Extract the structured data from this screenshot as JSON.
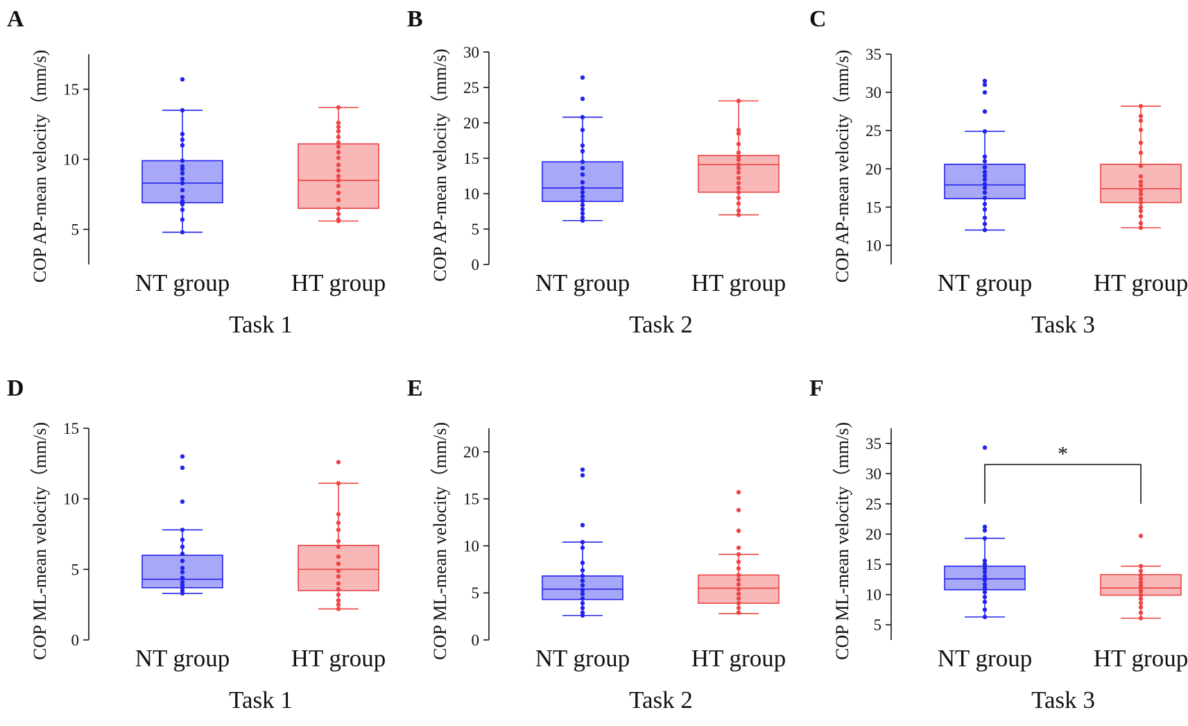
{
  "colors": {
    "nt_stroke": "#2222EE",
    "nt_fill": "#A8A8F8",
    "ht_stroke": "#EE4444",
    "ht_fill": "#F8B8B8",
    "axis": "#111111"
  },
  "chart_data": [
    {
      "type": "box",
      "panel": "A",
      "ylabel": "COP AP-mean velocity（mm/s)",
      "xlabel": "Task 1",
      "categories": [
        "NT group",
        "HT group"
      ],
      "ylim": [
        2.5,
        17.5
      ],
      "yticks": [
        5,
        10,
        15
      ],
      "series": [
        {
          "name": "NT group",
          "min": 4.8,
          "q1": 6.9,
          "median": 8.3,
          "q3": 9.9,
          "max": 13.5,
          "points": [
            15.7,
            13.5,
            11.8,
            11.4,
            11.0,
            9.9,
            9.5,
            9.3,
            9.0,
            8.6,
            8.3,
            7.8,
            7.3,
            7.0,
            6.8,
            6.4,
            5.7,
            4.8
          ]
        },
        {
          "name": "HT group",
          "min": 5.6,
          "q1": 6.5,
          "median": 8.5,
          "q3": 11.1,
          "max": 13.7,
          "points": [
            13.7,
            12.6,
            12.3,
            12.0,
            11.6,
            11.2,
            10.9,
            10.5,
            10.1,
            9.6,
            9.2,
            8.8,
            8.5,
            8.1,
            7.6,
            7.1,
            6.5,
            6.1,
            5.7,
            5.6
          ]
        }
      ]
    },
    {
      "type": "box",
      "panel": "B",
      "ylabel": "COP AP-mean velocity（mm/s)",
      "xlabel": "Task 2",
      "categories": [
        "NT group",
        "HT group"
      ],
      "ylim": [
        0,
        30
      ],
      "yticks": [
        0,
        5,
        10,
        15,
        20,
        25,
        30
      ],
      "series": [
        {
          "name": "NT group",
          "min": 6.2,
          "q1": 8.9,
          "median": 10.8,
          "q3": 14.5,
          "max": 20.8,
          "points": [
            26.4,
            23.4,
            20.8,
            19.0,
            16.8,
            16.0,
            14.5,
            13.6,
            12.7,
            11.6,
            10.8,
            10.2,
            9.6,
            9.0,
            8.4,
            7.8,
            7.2,
            6.6,
            6.2
          ]
        },
        {
          "name": "HT group",
          "min": 7.0,
          "q1": 10.2,
          "median": 14.1,
          "q3": 15.4,
          "max": 23.1,
          "points": [
            23.1,
            19.0,
            18.5,
            17.0,
            15.8,
            15.2,
            14.8,
            14.1,
            13.6,
            13.0,
            12.2,
            11.5,
            10.8,
            10.2,
            9.4,
            8.6,
            7.6,
            7.0
          ]
        }
      ]
    },
    {
      "type": "box",
      "panel": "C",
      "ylabel": "COP AP-mean velocity（mm/s)",
      "xlabel": "Task 3",
      "categories": [
        "NT group",
        "HT group"
      ],
      "ylim": [
        7.5,
        35
      ],
      "yticks": [
        10,
        15,
        20,
        25,
        30,
        35
      ],
      "series": [
        {
          "name": "NT group",
          "min": 12.0,
          "q1": 16.1,
          "median": 17.9,
          "q3": 20.6,
          "max": 24.9,
          "points": [
            31.5,
            31.0,
            30.0,
            27.5,
            24.9,
            21.6,
            21.0,
            20.2,
            19.6,
            19.1,
            18.6,
            18.0,
            17.5,
            16.9,
            16.2,
            15.4,
            14.7,
            13.6,
            12.8,
            12.0
          ]
        },
        {
          "name": "HT group",
          "min": 12.3,
          "q1": 15.6,
          "median": 17.4,
          "q3": 20.6,
          "max": 28.2,
          "points": [
            28.2,
            26.9,
            26.3,
            25.1,
            23.4,
            22.1,
            20.4,
            19.0,
            18.3,
            17.8,
            17.2,
            16.7,
            16.1,
            15.6,
            15.0,
            14.5,
            13.8,
            12.9,
            12.3
          ]
        }
      ]
    },
    {
      "type": "box",
      "panel": "D",
      "ylabel": "COP ML-mean velocity（mm/s)",
      "xlabel": "Task 1",
      "categories": [
        "NT group",
        "HT group"
      ],
      "ylim": [
        0,
        15
      ],
      "yticks": [
        0,
        5,
        10,
        15
      ],
      "series": [
        {
          "name": "NT group",
          "min": 3.3,
          "q1": 3.7,
          "median": 4.3,
          "q3": 6.0,
          "max": 7.8,
          "points": [
            13.0,
            12.2,
            9.8,
            7.8,
            7.1,
            6.6,
            6.1,
            5.6,
            5.1,
            4.8,
            4.4,
            4.1,
            3.9,
            3.7,
            3.5,
            3.3
          ]
        },
        {
          "name": "HT group",
          "min": 2.2,
          "q1": 3.5,
          "median": 5.0,
          "q3": 6.7,
          "max": 11.1,
          "points": [
            12.6,
            11.1,
            8.9,
            8.3,
            7.8,
            7.0,
            6.6,
            5.9,
            5.4,
            4.9,
            4.5,
            4.0,
            3.6,
            3.2,
            2.8,
            2.5,
            2.2
          ]
        }
      ]
    },
    {
      "type": "box",
      "panel": "E",
      "ylabel": "COP ML-mean velocity（mm/s)",
      "xlabel": "Task 2",
      "categories": [
        "NT group",
        "HT group"
      ],
      "ylim": [
        0,
        22.5
      ],
      "yticks": [
        0,
        5,
        10,
        15,
        20
      ],
      "series": [
        {
          "name": "NT group",
          "min": 2.6,
          "q1": 4.3,
          "median": 5.4,
          "q3": 6.8,
          "max": 10.4,
          "points": [
            18.1,
            17.5,
            12.2,
            10.4,
            9.8,
            8.2,
            7.4,
            6.8,
            6.3,
            5.8,
            5.3,
            4.9,
            4.4,
            3.9,
            3.4,
            2.9,
            2.6
          ]
        },
        {
          "name": "HT group",
          "min": 2.8,
          "q1": 3.9,
          "median": 5.5,
          "q3": 6.9,
          "max": 9.1,
          "points": [
            15.7,
            13.8,
            11.6,
            9.8,
            9.1,
            8.3,
            7.6,
            6.9,
            6.4,
            5.9,
            5.4,
            4.9,
            4.4,
            3.9,
            3.4,
            2.9
          ]
        }
      ]
    },
    {
      "type": "box",
      "panel": "F",
      "ylabel": "COP ML-mean velocity（mm/s)",
      "xlabel": "Task 3",
      "categories": [
        "NT group",
        "HT group"
      ],
      "ylim": [
        2.5,
        37.5
      ],
      "yticks": [
        5,
        10,
        15,
        20,
        25,
        30,
        35
      ],
      "significance": {
        "from": "NT group",
        "to": "HT group",
        "label": "*",
        "y": 31.5
      },
      "series": [
        {
          "name": "NT group",
          "min": 6.3,
          "q1": 10.8,
          "median": 12.6,
          "q3": 14.7,
          "max": 19.3,
          "points": [
            34.3,
            21.2,
            20.6,
            19.3,
            15.6,
            15.0,
            14.3,
            13.7,
            13.0,
            12.4,
            11.7,
            11.1,
            10.4,
            9.6,
            8.8,
            7.5,
            6.3
          ]
        },
        {
          "name": "HT group",
          "min": 6.1,
          "q1": 9.9,
          "median": 11.1,
          "q3": 13.3,
          "max": 14.7,
          "points": [
            19.7,
            14.7,
            13.9,
            13.2,
            12.6,
            12.0,
            11.5,
            11.0,
            10.5,
            9.9,
            9.3,
            8.6,
            7.9,
            7.0,
            6.1
          ]
        }
      ]
    }
  ]
}
